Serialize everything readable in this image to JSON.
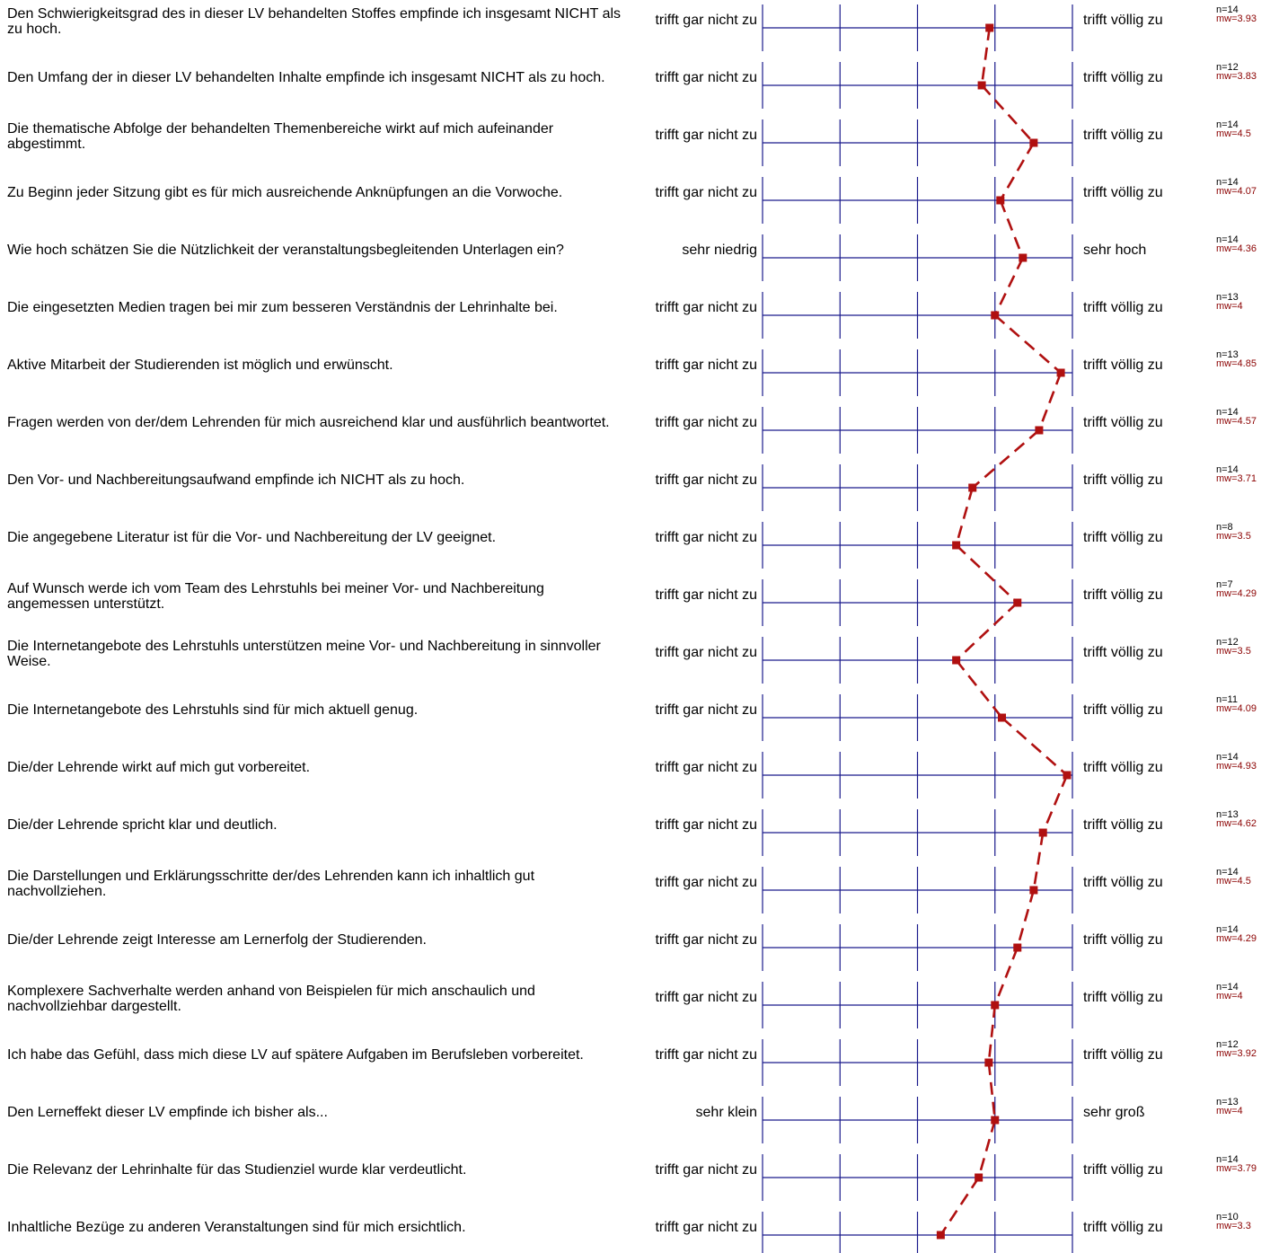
{
  "colors": {
    "axis": "#1a1a8c",
    "profile": "#b01010",
    "text": "#000000",
    "mean_text": "#8b0000"
  },
  "chart_data": {
    "type": "line",
    "orientation": "horizontal-profile",
    "scale": [
      1,
      5
    ],
    "line_style": "dashed",
    "marker": "square",
    "items": [
      {
        "question": "Den Schwierigkeitsgrad des in dieser LV behandelten Stoffes empfinde ich insgesamt NICHT als zu hoch.",
        "left": "trifft gar nicht zu",
        "right": "trifft völlig zu",
        "n": "n=14",
        "mw": "mw=3.93",
        "value": 3.93
      },
      {
        "question": "Den Umfang der in dieser LV behandelten Inhalte empfinde ich insgesamt NICHT als zu hoch.",
        "left": "trifft gar nicht zu",
        "right": "trifft völlig zu",
        "n": "n=12",
        "mw": "mw=3.83",
        "value": 3.83
      },
      {
        "question": "Die thematische Abfolge der behandelten Themenbereiche wirkt auf mich aufeinander abgestimmt.",
        "left": "trifft gar nicht zu",
        "right": "trifft völlig zu",
        "n": "n=14",
        "mw": "mw=4.5",
        "value": 4.5
      },
      {
        "question": "Zu Beginn jeder Sitzung gibt es für mich ausreichende Anknüpfungen an die Vorwoche.",
        "left": "trifft gar nicht zu",
        "right": "trifft völlig zu",
        "n": "n=14",
        "mw": "mw=4.07",
        "value": 4.07
      },
      {
        "question": "Wie hoch schätzen Sie die Nützlichkeit der veranstaltungsbegleitenden Unterlagen ein?",
        "left": "sehr niedrig",
        "right": "sehr hoch",
        "n": "n=14",
        "mw": "mw=4.36",
        "value": 4.36
      },
      {
        "question": "Die eingesetzten Medien tragen bei mir zum besseren Verständnis der Lehrinhalte bei.",
        "left": "trifft gar nicht zu",
        "right": "trifft völlig zu",
        "n": "n=13",
        "mw": "mw=4",
        "value": 4.0
      },
      {
        "question": "Aktive Mitarbeit der Studierenden ist möglich und erwünscht.",
        "left": "trifft gar nicht zu",
        "right": "trifft völlig zu",
        "n": "n=13",
        "mw": "mw=4.85",
        "value": 4.85
      },
      {
        "question": "Fragen werden von der/dem Lehrenden für mich ausreichend klar und ausführlich beantwortet.",
        "left": "trifft gar nicht zu",
        "right": "trifft völlig zu",
        "n": "n=14",
        "mw": "mw=4.57",
        "value": 4.57
      },
      {
        "question": "Den Vor- und Nachbereitungsaufwand empfinde ich  NICHT als zu hoch.",
        "left": "trifft gar nicht zu",
        "right": "trifft völlig zu",
        "n": "n=14",
        "mw": "mw=3.71",
        "value": 3.71
      },
      {
        "question": "Die angegebene Literatur ist für die Vor- und Nachbereitung der LV geeignet.",
        "left": "trifft gar nicht zu",
        "right": "trifft völlig zu",
        "n": "n=8",
        "mw": "mw=3.5",
        "value": 3.5
      },
      {
        "question": "Auf Wunsch werde ich vom Team des Lehrstuhls bei meiner Vor- und Nachbereitung angemessen unterstützt.",
        "left": "trifft gar nicht zu",
        "right": "trifft völlig zu",
        "n": "n=7",
        "mw": "mw=4.29",
        "value": 4.29
      },
      {
        "question": "Die Internetangebote des Lehrstuhls unterstützen meine Vor- und Nachbereitung in sinnvoller Weise.",
        "left": "trifft gar nicht zu",
        "right": "trifft völlig zu",
        "n": "n=12",
        "mw": "mw=3.5",
        "value": 3.5
      },
      {
        "question": "Die Internetangebote des Lehrstuhls sind für mich aktuell genug.",
        "left": "trifft gar nicht zu",
        "right": "trifft völlig zu",
        "n": "n=11",
        "mw": "mw=4.09",
        "value": 4.09
      },
      {
        "question": "Die/der Lehrende wirkt auf mich gut vorbereitet.",
        "left": "trifft gar nicht zu",
        "right": "trifft völlig zu",
        "n": "n=14",
        "mw": "mw=4.93",
        "value": 4.93
      },
      {
        "question": "Die/der Lehrende spricht klar und deutlich.",
        "left": "trifft gar nicht zu",
        "right": "trifft völlig zu",
        "n": "n=13",
        "mw": "mw=4.62",
        "value": 4.62
      },
      {
        "question": "Die Darstellungen und Erklärungsschritte der/des Lehrenden kann ich inhaltlich gut nachvollziehen.",
        "left": "trifft gar nicht zu",
        "right": "trifft völlig zu",
        "n": "n=14",
        "mw": "mw=4.5",
        "value": 4.5
      },
      {
        "question": "Die/der Lehrende zeigt Interesse am Lernerfolg der Studierenden.",
        "left": "trifft gar nicht zu",
        "right": "trifft völlig zu",
        "n": "n=14",
        "mw": "mw=4.29",
        "value": 4.29
      },
      {
        "question": "Komplexere Sachverhalte werden anhand von Beispielen für mich anschaulich und nachvollziehbar dargestellt.",
        "left": "trifft gar nicht zu",
        "right": "trifft völlig zu",
        "n": "n=14",
        "mw": "mw=4",
        "value": 4.0
      },
      {
        "question": "Ich habe das Gefühl, dass mich diese LV auf spätere Aufgaben im Berufsleben vorbereitet.",
        "left": "trifft gar nicht zu",
        "right": "trifft völlig zu",
        "n": "n=12",
        "mw": "mw=3.92",
        "value": 3.92
      },
      {
        "question": "Den Lerneffekt dieser LV empfinde ich bisher als...",
        "left": "sehr klein",
        "right": "sehr groß",
        "n": "n=13",
        "mw": "mw=4",
        "value": 4.0
      },
      {
        "question": "Die Relevanz der Lehrinhalte für das Studienziel wurde klar verdeutlicht.",
        "left": "trifft gar nicht zu",
        "right": "trifft völlig zu",
        "n": "n=14",
        "mw": "mw=3.79",
        "value": 3.79
      },
      {
        "question": "Inhaltliche Bezüge zu anderen Veranstaltungen sind für mich ersichtlich.",
        "left": "trifft gar nicht zu",
        "right": "trifft völlig zu",
        "n": "n=10",
        "mw": "mw=3.3",
        "value": 3.3
      }
    ]
  }
}
